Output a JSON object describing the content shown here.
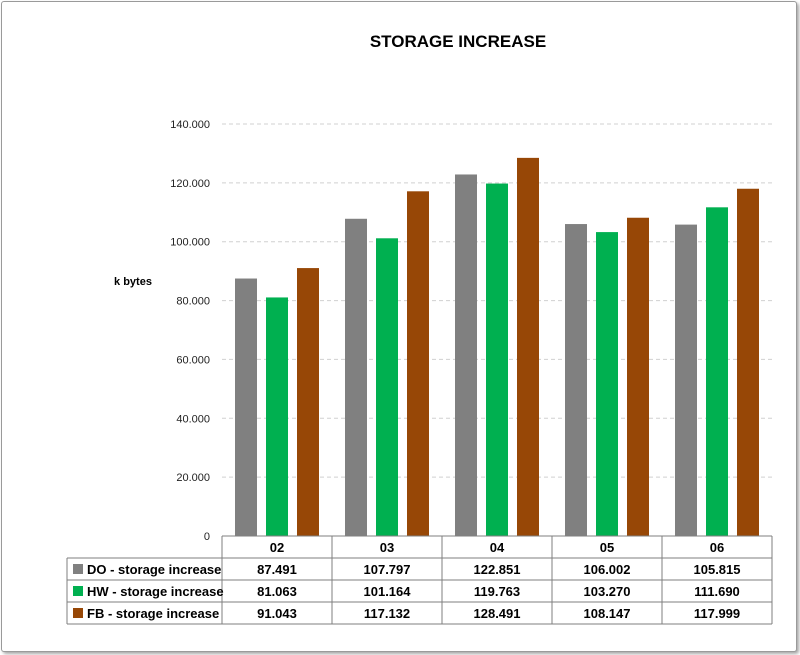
{
  "chart_data": {
    "type": "bar",
    "title": "STORAGE INCREASE",
    "ylabel": "k bytes",
    "xlabel": "",
    "ylim": [
      0,
      140000
    ],
    "yticks": [
      0,
      20000,
      40000,
      60000,
      80000,
      100000,
      120000,
      140000
    ],
    "ytick_labels": [
      "0",
      "20.000",
      "40.000",
      "60.000",
      "80.000",
      "100.000",
      "120.000",
      "140.000"
    ],
    "grid": true,
    "legend": "data-table-left",
    "categories": [
      "02",
      "03",
      "04",
      "05",
      "06"
    ],
    "series": [
      {
        "name": "DO - storage increase",
        "color": "#808080",
        "values": [
          87491,
          107797,
          122851,
          106002,
          105815
        ],
        "labels": [
          "87.491",
          "107.797",
          "122.851",
          "106.002",
          "105.815"
        ]
      },
      {
        "name": "HW - storage increase",
        "color": "#00b050",
        "values": [
          81063,
          101164,
          119763,
          103270,
          111690
        ],
        "labels": [
          "81.063",
          "101.164",
          "119.763",
          "103.270",
          "111.690"
        ]
      },
      {
        "name": "FB - storage increase",
        "color": "#974706",
        "values": [
          91043,
          117132,
          128491,
          108147,
          117999
        ],
        "labels": [
          "91.043",
          "117.132",
          "128.491",
          "108.147",
          "117.999"
        ]
      }
    ]
  }
}
